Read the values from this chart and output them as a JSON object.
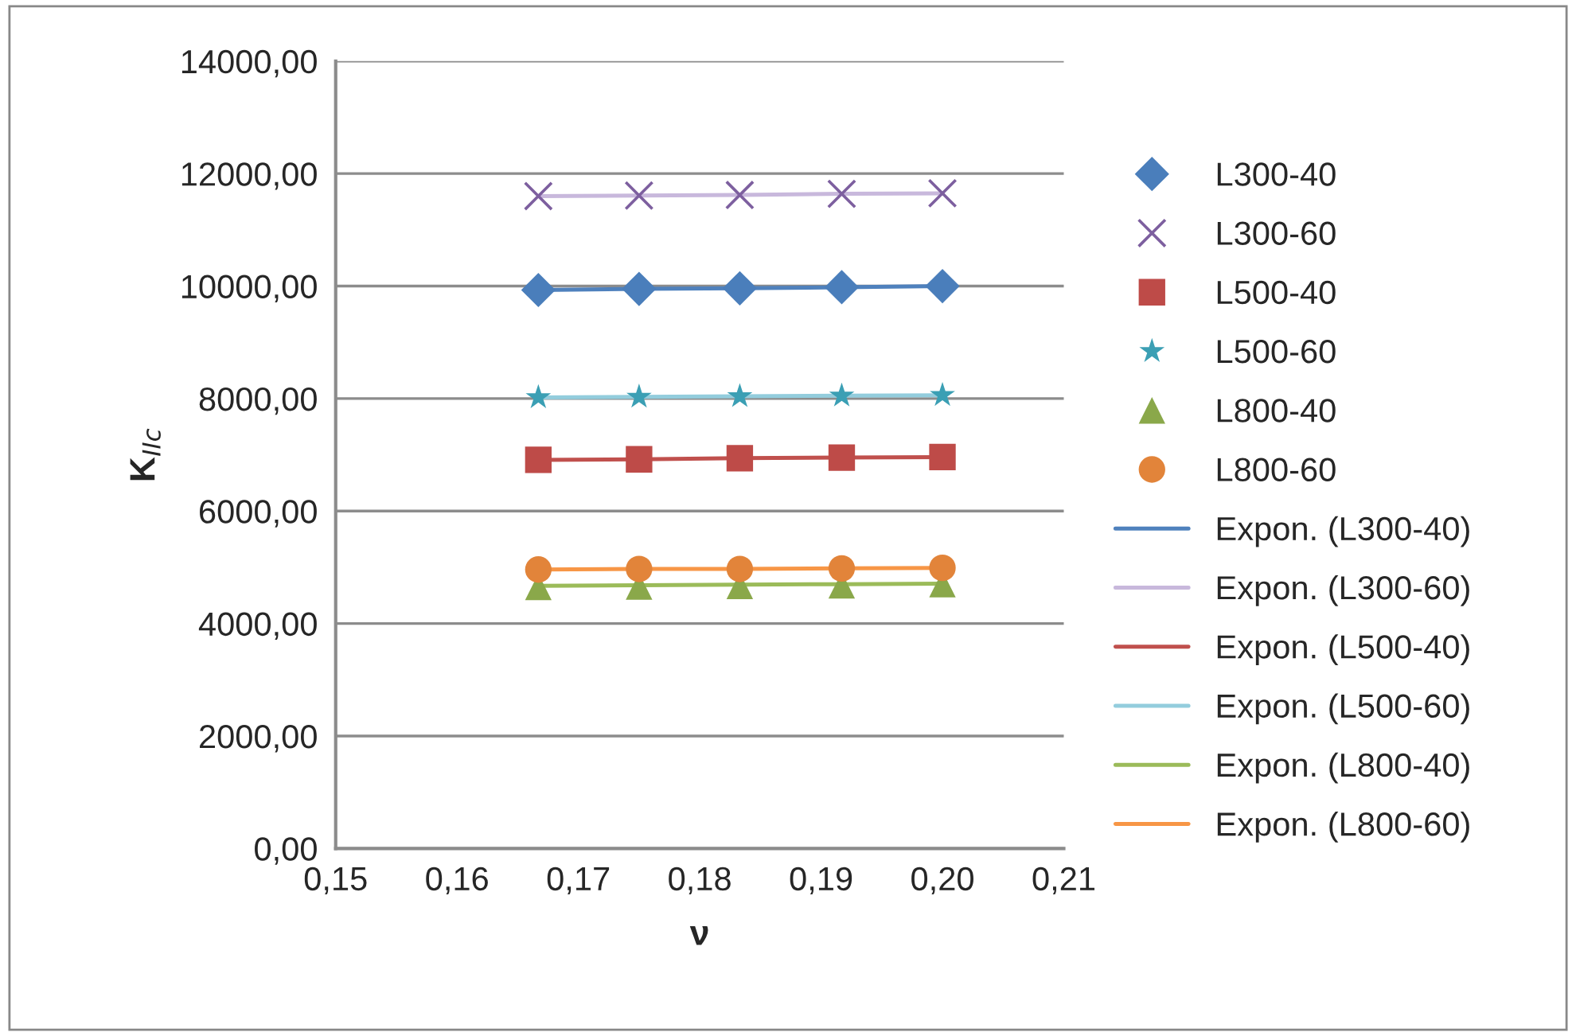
{
  "chart_data": {
    "type": "scatter",
    "xlabel": "ν",
    "ylabel": "K$_{IIc}$",
    "x": [
      0.1667,
      0.175,
      0.1833,
      0.1917,
      0.2
    ],
    "xlim": [
      0.15,
      0.21
    ],
    "xticks": [
      {
        "value": 0.15,
        "label": "0,15"
      },
      {
        "value": 0.16,
        "label": "0,16"
      },
      {
        "value": 0.17,
        "label": "0,17"
      },
      {
        "value": 0.18,
        "label": "0,18"
      },
      {
        "value": 0.19,
        "label": "0,19"
      },
      {
        "value": 0.2,
        "label": "0,20"
      },
      {
        "value": 0.21,
        "label": "0,21"
      }
    ],
    "ylim": [
      0,
      14000
    ],
    "yticks": [
      {
        "value": 0,
        "label": "0,00"
      },
      {
        "value": 2000,
        "label": "2000,00"
      },
      {
        "value": 4000,
        "label": "4000,00"
      },
      {
        "value": 6000,
        "label": "6000,00"
      },
      {
        "value": 8000,
        "label": "8000,00"
      },
      {
        "value": 10000,
        "label": "10000,00"
      },
      {
        "value": 12000,
        "label": "12000,00"
      },
      {
        "value": 14000,
        "label": "14000,00"
      }
    ],
    "grid": "y",
    "legend": "right",
    "series": [
      {
        "name": "L300-40",
        "color": "#4a7ebb",
        "marker": "diamond",
        "values": [
          9930,
          9950,
          9960,
          9980,
          10000
        ]
      },
      {
        "name": "L300-60",
        "color": "#7d5f9f",
        "marker": "cross",
        "values": [
          11600,
          11610,
          11620,
          11640,
          11650
        ]
      },
      {
        "name": "L500-40",
        "color": "#be4b48",
        "marker": "square",
        "values": [
          6910,
          6920,
          6940,
          6950,
          6960
        ]
      },
      {
        "name": "L500-60",
        "color": "#3b9fb4",
        "marker": "star",
        "values": [
          8020,
          8030,
          8040,
          8050,
          8060
        ]
      },
      {
        "name": "L800-40",
        "color": "#8aa84a",
        "marker": "triangle",
        "values": [
          4650,
          4660,
          4670,
          4680,
          4700
        ]
      },
      {
        "name": "L800-60",
        "color": "#e2843a",
        "marker": "circle",
        "values": [
          4960,
          4970,
          4970,
          4980,
          4990
        ]
      },
      {
        "name": "Expon. (L300-40)",
        "type": "line",
        "marker": "none",
        "color": "#4f81bd",
        "values": [
          9930,
          9950,
          9960,
          9980,
          10000
        ]
      },
      {
        "name": "Expon. (L300-60)",
        "type": "line",
        "marker": "none",
        "color": "#c8b8dc",
        "values": [
          11600,
          11610,
          11620,
          11640,
          11650
        ]
      },
      {
        "name": "Expon. (L500-40)",
        "type": "line",
        "marker": "none",
        "color": "#c0504d",
        "values": [
          6910,
          6920,
          6940,
          6950,
          6960
        ]
      },
      {
        "name": "Expon. (L500-60)",
        "type": "line",
        "marker": "none",
        "color": "#93cddd",
        "values": [
          8020,
          8030,
          8040,
          8050,
          8060
        ]
      },
      {
        "name": "Expon. (L800-40)",
        "type": "line",
        "marker": "none",
        "color": "#9bbb59",
        "values": [
          4670,
          4680,
          4690,
          4700,
          4710
        ]
      },
      {
        "name": "Expon. (L800-60)",
        "type": "line",
        "marker": "none",
        "color": "#f79646",
        "values": [
          4960,
          4970,
          4970,
          4980,
          4990
        ]
      }
    ]
  }
}
